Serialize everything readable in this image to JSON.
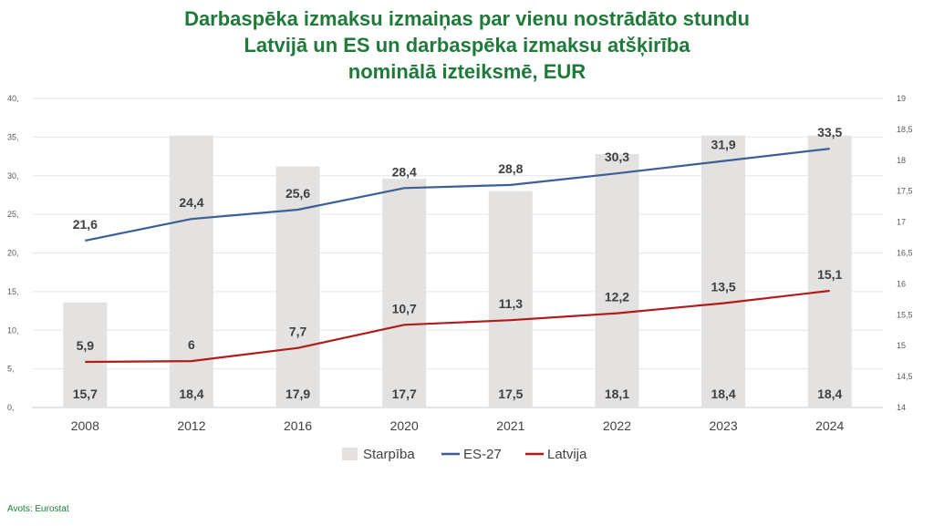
{
  "title_lines": [
    "Darbaspēka izmaksu izmaiņas par vienu nostrādāto stundu",
    "Latvijā un ES un darbaspēka izmaksu atšķirība",
    "nominālā izteiksmē, EUR"
  ],
  "source": "Avots: Eurostat",
  "chart_data": {
    "type": "bar+line",
    "title": "Darbaspēka izmaksu izmaiņas par vienu nostrādāto stundu Latvijā un ES un darbaspēka izmaksu atšķirība nominālā izteiksmē, EUR",
    "categories": [
      "2008",
      "2012",
      "2016",
      "2020",
      "2021",
      "2022",
      "2023",
      "2024"
    ],
    "left_axis": {
      "range": [
        0,
        40
      ],
      "ticks": [
        "0,",
        "5,",
        "10,",
        "15,",
        "20,",
        "25,",
        "30,",
        "35,",
        "40,"
      ]
    },
    "right_axis": {
      "range": [
        14,
        19
      ],
      "ticks": [
        "14",
        "14,5",
        "15",
        "15,5",
        "16",
        "16,5",
        "17",
        "17,5",
        "18",
        "18,5",
        "19"
      ]
    },
    "bar_series": {
      "name": "Starpība",
      "axis": "right",
      "color": "#e4e1e1",
      "values": [
        15.7,
        18.4,
        17.9,
        17.7,
        17.5,
        18.1,
        18.4,
        18.4
      ],
      "labels": [
        "15,7",
        "18,4",
        "17,9",
        "17,7",
        "17,5",
        "18,1",
        "18,4",
        "18,4"
      ]
    },
    "line_series": [
      {
        "name": "ES-27",
        "axis": "left",
        "color": "#3d5f95",
        "values": [
          21.6,
          24.4,
          25.6,
          28.4,
          28.8,
          30.3,
          31.9,
          33.5
        ],
        "labels": [
          "21,6",
          "24,4",
          "25,6",
          "28,4",
          "28,8",
          "30,3",
          "31,9",
          "33,5"
        ]
      },
      {
        "name": "Latvija",
        "axis": "left",
        "color": "#b01c1c",
        "values": [
          5.9,
          6,
          7.7,
          10.7,
          11.3,
          12.2,
          13.5,
          15.1
        ],
        "labels": [
          "5,9",
          "6",
          "7,7",
          "10,7",
          "11,3",
          "12,2",
          "13,5",
          "15,1"
        ]
      }
    ],
    "legend": [
      "Starpība",
      "ES-27",
      "Latvija"
    ],
    "legend_position": "bottom",
    "grid": true
  }
}
